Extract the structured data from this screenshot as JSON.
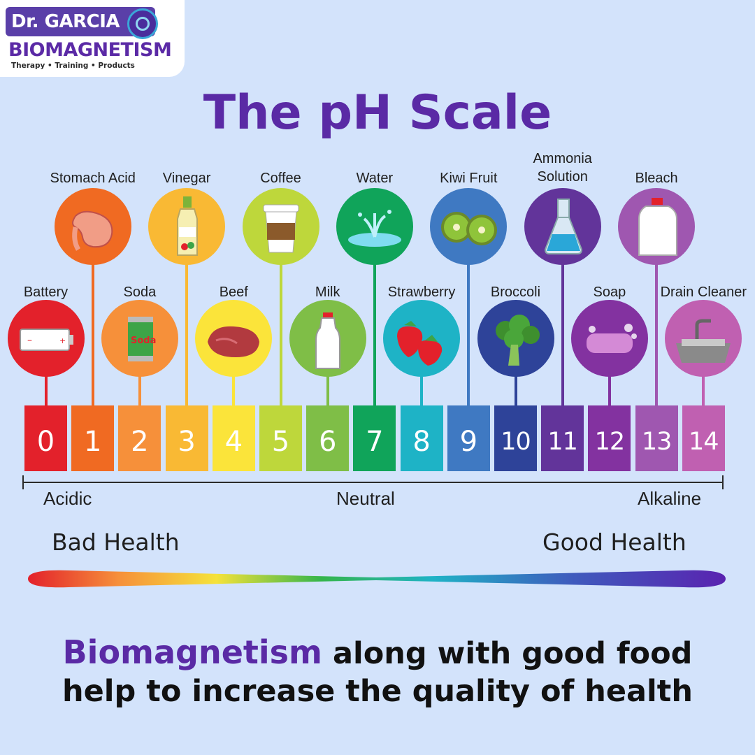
{
  "logo": {
    "line1": "Dr. GARCIA",
    "line2": "BIOMAGNETISM",
    "line3": "Therapy • Training • Products"
  },
  "title": "The pH Scale",
  "ph_levels": [
    {
      "value": "0",
      "color": "#e3212b"
    },
    {
      "value": "1",
      "color": "#f06a22"
    },
    {
      "value": "2",
      "color": "#f6903a"
    },
    {
      "value": "3",
      "color": "#f9b934"
    },
    {
      "value": "4",
      "color": "#fbe43a"
    },
    {
      "value": "5",
      "color": "#bed73b"
    },
    {
      "value": "6",
      "color": "#7fbe47"
    },
    {
      "value": "7",
      "color": "#10a45a"
    },
    {
      "value": "8",
      "color": "#1eb3c6"
    },
    {
      "value": "9",
      "color": "#3f79c2"
    },
    {
      "value": "10",
      "color": "#2e4399"
    },
    {
      "value": "11",
      "color": "#62349a"
    },
    {
      "value": "12",
      "color": "#8332a0"
    },
    {
      "value": "13",
      "color": "#9f57b0"
    },
    {
      "value": "14",
      "color": "#c060b1"
    }
  ],
  "items": [
    {
      "label": "Battery",
      "ph": 0,
      "icon": "battery-icon"
    },
    {
      "label": "Stomach Acid",
      "ph": 1,
      "icon": "stomach-icon"
    },
    {
      "label": "Soda",
      "ph": 2,
      "icon": "soda-can-icon"
    },
    {
      "label": "Vinegar",
      "ph": 3,
      "icon": "vinegar-bottle-icon"
    },
    {
      "label": "Beef",
      "ph": 4,
      "icon": "beef-icon"
    },
    {
      "label": "Coffee",
      "ph": 5,
      "icon": "coffee-cup-icon"
    },
    {
      "label": "Milk",
      "ph": 6,
      "icon": "milk-bottle-icon"
    },
    {
      "label": "Water",
      "ph": 7,
      "icon": "water-splash-icon"
    },
    {
      "label": "Strawberry",
      "ph": 8,
      "icon": "strawberry-icon"
    },
    {
      "label": "Kiwi Fruit",
      "ph": 9,
      "icon": "kiwi-icon"
    },
    {
      "label": "Broccoli",
      "ph": 10,
      "icon": "broccoli-icon"
    },
    {
      "label": "Ammonia\nSolution",
      "ph": 11,
      "icon": "flask-icon"
    },
    {
      "label": "Soap",
      "ph": 12,
      "icon": "soap-icon"
    },
    {
      "label": "Bleach",
      "ph": 13,
      "icon": "bleach-jug-icon"
    },
    {
      "label": "Drain Cleaner",
      "ph": 14,
      "icon": "sink-icon"
    }
  ],
  "scale": {
    "left": "Acidic",
    "middle": "Neutral",
    "right": "Alkaline"
  },
  "health": {
    "left": "Bad Health",
    "right": "Good Health"
  },
  "tagline": {
    "highlight": "Biomagnetism",
    "line1_rest": " along with good food",
    "line2": "help to increase the quality of health"
  }
}
